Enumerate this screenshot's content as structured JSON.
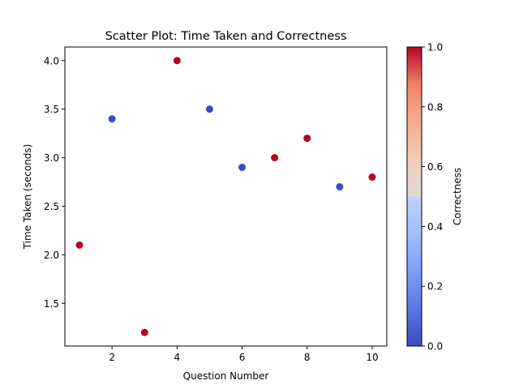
{
  "chart_data": {
    "type": "scatter",
    "title": "Scatter Plot: Time Taken and Correctness",
    "xlabel": "Question Number",
    "ylabel": "Time Taken (seconds)",
    "xlim": [
      0.55,
      10.45
    ],
    "ylim": [
      1.06,
      4.14
    ],
    "x_ticks": [
      2,
      4,
      6,
      8,
      10
    ],
    "y_ticks": [
      1.5,
      2.0,
      2.5,
      3.0,
      3.5,
      4.0
    ],
    "x_tick_labels": [
      "2",
      "4",
      "6",
      "8",
      "10"
    ],
    "y_tick_labels": [
      "1.5",
      "2.0",
      "2.5",
      "3.0",
      "3.5",
      "4.0"
    ],
    "grid": false,
    "legend": "none",
    "points": [
      {
        "x": 1,
        "y": 2.1,
        "correctness": 1
      },
      {
        "x": 2,
        "y": 3.4,
        "correctness": 0
      },
      {
        "x": 3,
        "y": 1.2,
        "correctness": 1
      },
      {
        "x": 4,
        "y": 4.0,
        "correctness": 1
      },
      {
        "x": 5,
        "y": 3.5,
        "correctness": 0
      },
      {
        "x": 6,
        "y": 2.9,
        "correctness": 0
      },
      {
        "x": 7,
        "y": 3.0,
        "correctness": 1
      },
      {
        "x": 8,
        "y": 3.2,
        "correctness": 1
      },
      {
        "x": 9,
        "y": 2.7,
        "correctness": 0
      },
      {
        "x": 10,
        "y": 2.8,
        "correctness": 1
      }
    ],
    "colorbar": {
      "label": "Correctness",
      "colormap": "coolwarm",
      "range": [
        0.0,
        1.0
      ],
      "ticks": [
        0.0,
        0.2,
        0.4,
        0.6,
        0.8,
        1.0
      ],
      "tick_labels": [
        "0.0",
        "0.2",
        "0.4",
        "0.6",
        "0.8",
        "1.0"
      ],
      "low_color": "#3b4cc0",
      "high_color": "#b40426"
    }
  }
}
